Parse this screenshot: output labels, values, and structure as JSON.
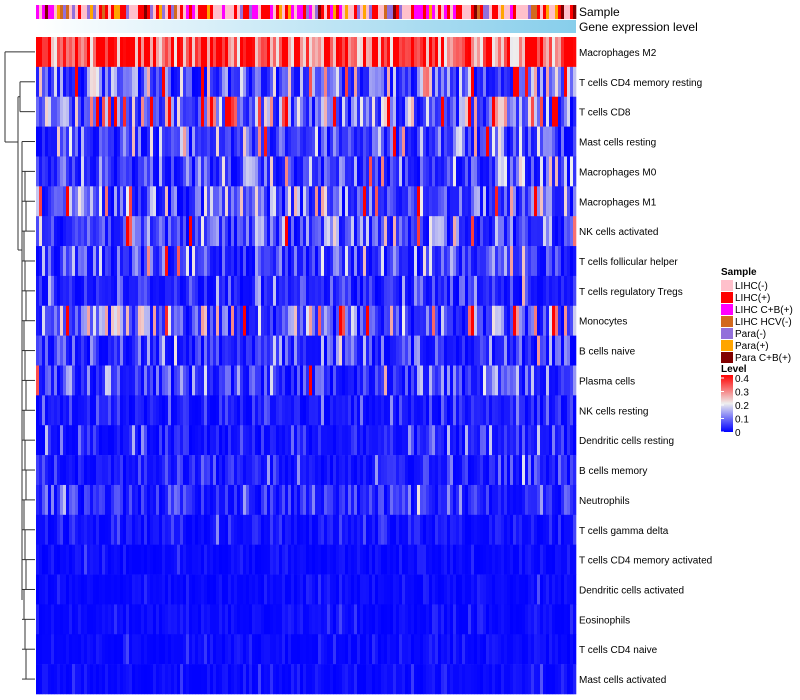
{
  "chart_data": {
    "type": "heatmap",
    "title": "",
    "annotations": [
      "Sample",
      "Gene expression level"
    ],
    "rows": [
      {
        "label": "Macrophages M2",
        "mean_level": 0.33
      },
      {
        "label": "T cells CD4 memory resting",
        "mean_level": 0.12
      },
      {
        "label": "T cells CD8",
        "mean_level": 0.13
      },
      {
        "label": "Mast cells resting",
        "mean_level": 0.08
      },
      {
        "label": "Macrophages M0",
        "mean_level": 0.06
      },
      {
        "label": "Macrophages M1",
        "mean_level": 0.1
      },
      {
        "label": "NK cells activated",
        "mean_level": 0.08
      },
      {
        "label": "T cells follicular helper",
        "mean_level": 0.06
      },
      {
        "label": "T cells regulatory  Tregs",
        "mean_level": 0.04
      },
      {
        "label": "Monocytes",
        "mean_level": 0.11
      },
      {
        "label": "B cells naive",
        "mean_level": 0.05
      },
      {
        "label": "Plasma cells",
        "mean_level": 0.07
      },
      {
        "label": "NK cells resting",
        "mean_level": 0.03
      },
      {
        "label": "Dendritic cells resting",
        "mean_level": 0.03
      },
      {
        "label": "B cells memory",
        "mean_level": 0.03
      },
      {
        "label": "Neutrophils",
        "mean_level": 0.04
      },
      {
        "label": "T cells gamma delta",
        "mean_level": 0.02
      },
      {
        "label": "T cells CD4 memory activated",
        "mean_level": 0.01
      },
      {
        "label": "Dendritic cells activated",
        "mean_level": 0.01
      },
      {
        "label": "Eosinophils",
        "mean_level": 0.01
      },
      {
        "label": "T cells CD4 naive",
        "mean_level": 0.01
      },
      {
        "label": "Mast cells activated",
        "mean_level": 0.01
      }
    ],
    "sample_legend": {
      "title": "Sample",
      "entries": [
        {
          "label": "LIHC(-)",
          "color": "#FFC0CB"
        },
        {
          "label": "LIHC(+)",
          "color": "#FF0000"
        },
        {
          "label": "LIHC C+B(+)",
          "color": "#FF00FF"
        },
        {
          "label": "LIHC HCV(-)",
          "color": "#D2691E"
        },
        {
          "label": "Para(-)",
          "color": "#9370DB"
        },
        {
          "label": "Para(+)",
          "color": "#FFA500"
        },
        {
          "label": "Para C+B(+)",
          "color": "#800000"
        }
      ]
    },
    "level_legend": {
      "title": "Level",
      "ticks": [
        "0.4",
        "0.3",
        "0.2",
        "0.1",
        "0"
      ],
      "range": [
        0,
        0.4
      ],
      "colors": {
        "low": "#0000FF",
        "mid": "#EEEEEE",
        "high": "#FF0000"
      }
    },
    "gene_expression_colors": {
      "low": "#FFFFFF",
      "high": "#87CEEB"
    }
  }
}
